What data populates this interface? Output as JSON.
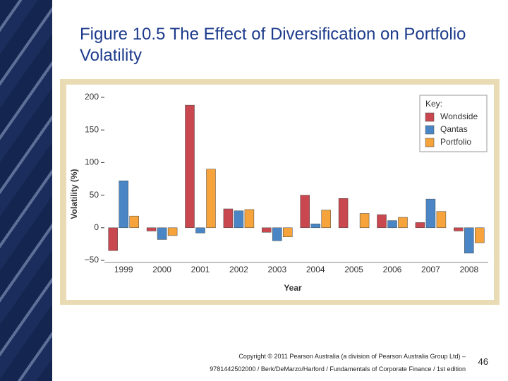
{
  "chart_data": {
    "type": "bar",
    "title": "Figure 10.5 The Effect of Diversification on Portfolio Volatility",
    "categories": [
      "1999",
      "2000",
      "2001",
      "2002",
      "2003",
      "2004",
      "2005",
      "2006",
      "2007",
      "2008"
    ],
    "series": [
      {
        "name": "Wondside",
        "color": "#c9474f",
        "values": [
          -35,
          -5,
          188,
          29,
          -7,
          50,
          45,
          20,
          8,
          -5
        ]
      },
      {
        "name": "Qantas",
        "color": "#4a86c5",
        "values": [
          72,
          -18,
          -8,
          26,
          -20,
          6,
          null,
          11,
          44,
          -39
        ]
      },
      {
        "name": "Portfolio",
        "color": "#f5a33a",
        "values": [
          18,
          -12,
          90,
          28,
          -14,
          27,
          22,
          16,
          25,
          -23
        ]
      }
    ],
    "ylim": [
      -50,
      200
    ],
    "yticks": [
      {
        "value": -50,
        "label": "−50"
      },
      0,
      50,
      100,
      150,
      200
    ],
    "ylabel": "Volatility (%)",
    "xlabel": "Year",
    "legend_title": "Key:",
    "legend": "top-right",
    "grid": false
  },
  "footer": {
    "copyright": [
      "Copyright © 2011 Pearson Australia (a division of Pearson Australia Group Ltd) –",
      "9781442502000 / Berk/DeMarzo/Harford / Fundamentals of Corporate Finance / 1st edition"
    ],
    "page": "46"
  }
}
